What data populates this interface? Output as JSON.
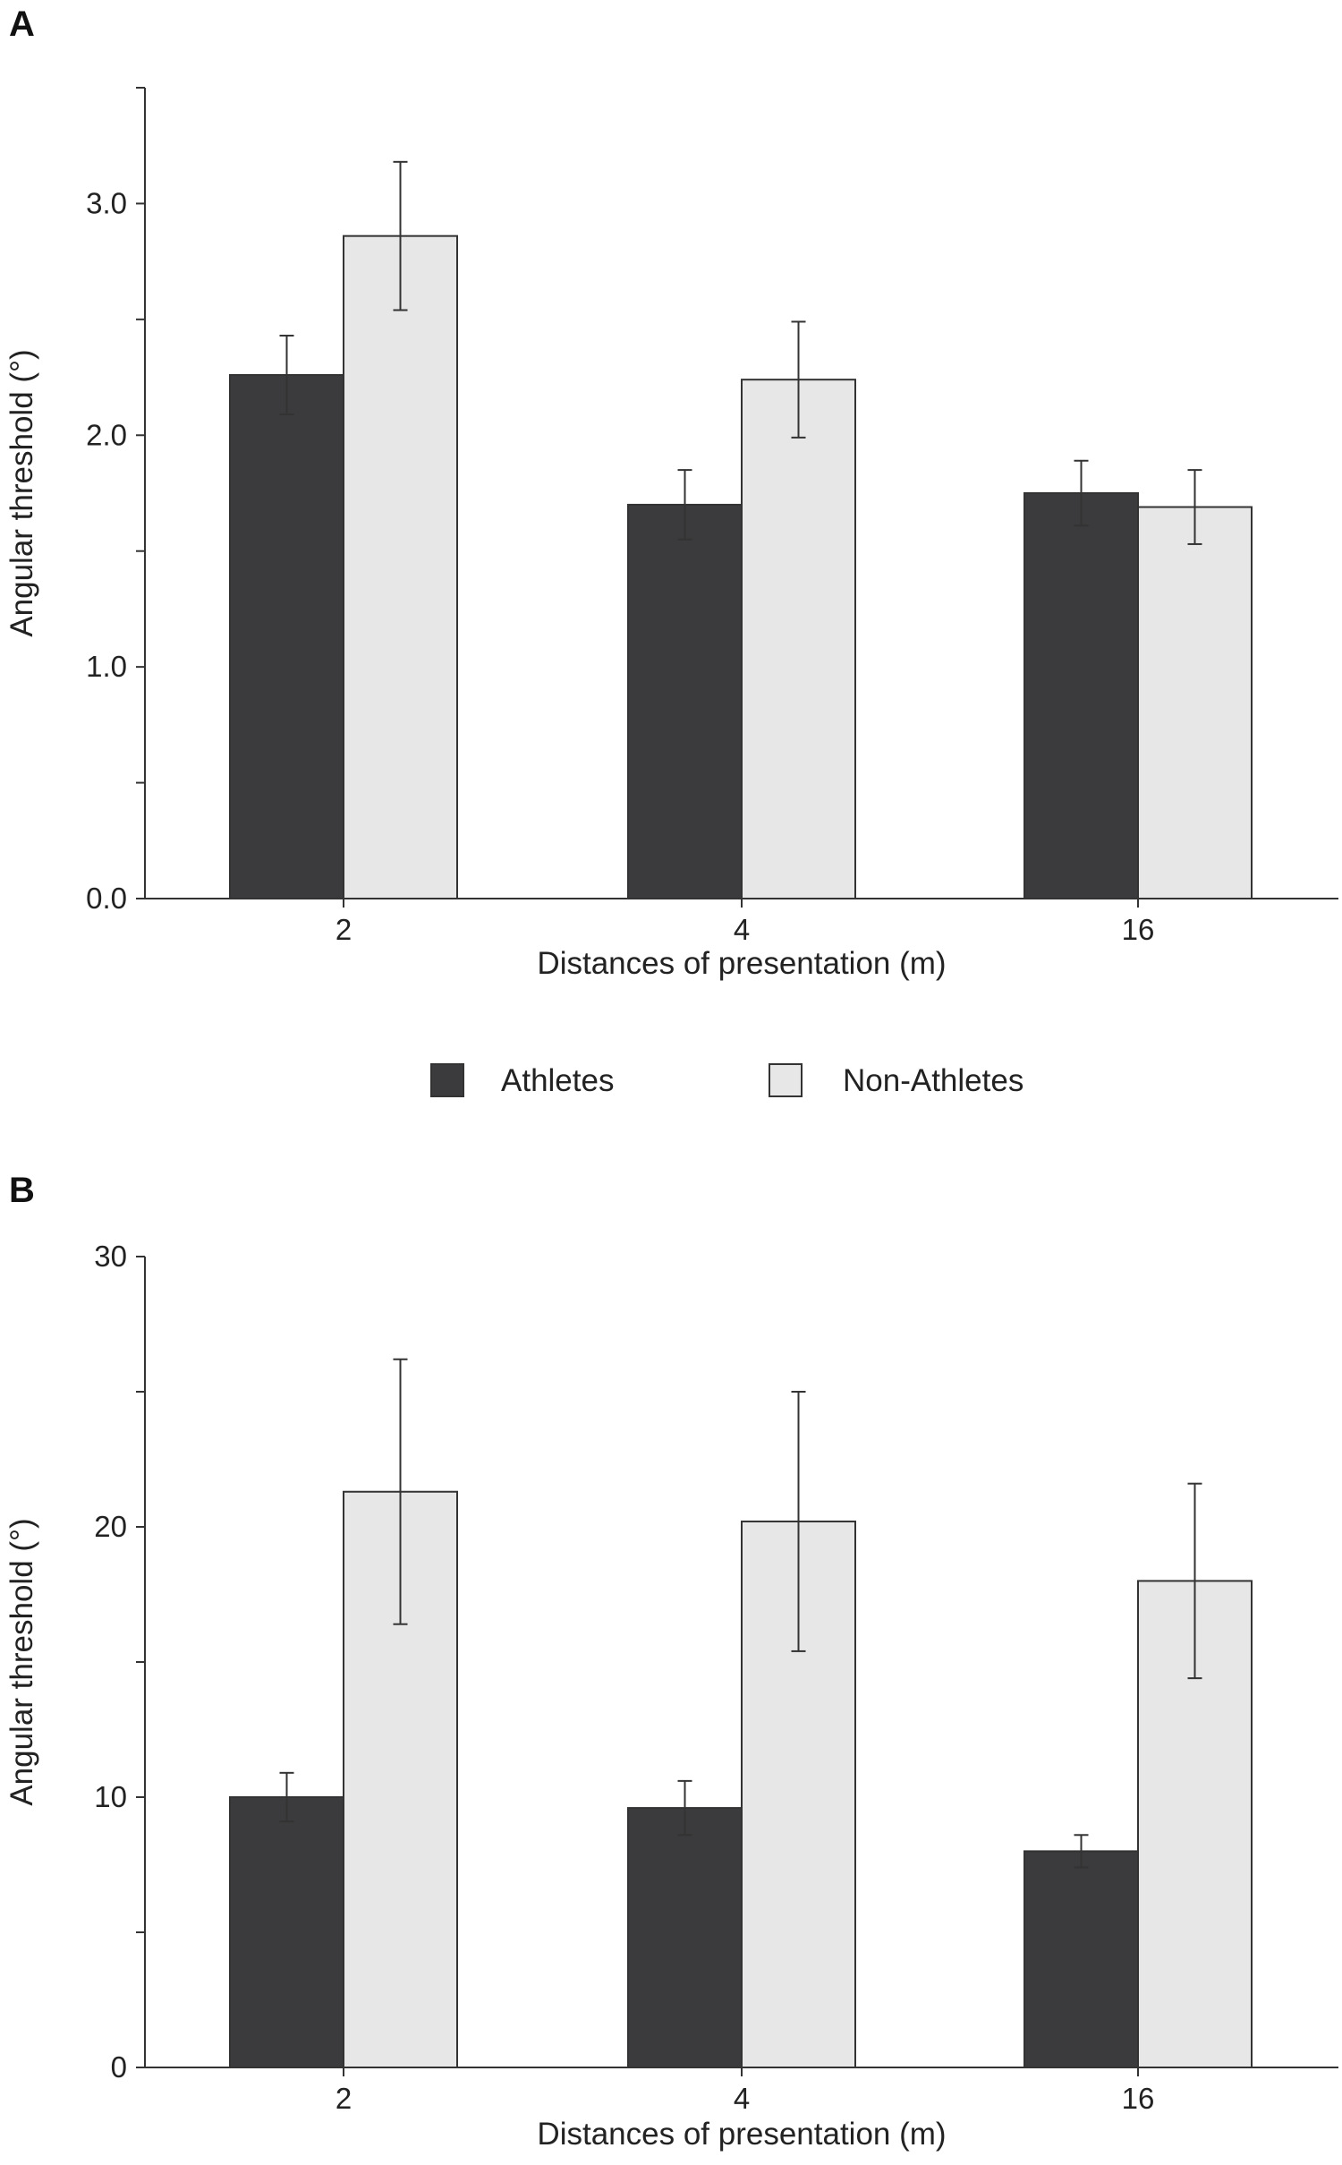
{
  "chart_data": [
    {
      "type": "bar",
      "panel": "A",
      "categories": [
        "2",
        "4",
        "16"
      ],
      "series": [
        {
          "name": "Athletes",
          "color": "#3b3b3d",
          "values": [
            2.26,
            1.7,
            1.75
          ],
          "errors": [
            0.17,
            0.15,
            0.14
          ]
        },
        {
          "name": "Non-Athletes",
          "color": "#e6e7e6",
          "values": [
            2.86,
            2.24,
            1.69
          ],
          "errors": [
            0.32,
            0.25,
            0.16
          ]
        }
      ],
      "xlabel": "Distances of presentation (m)",
      "ylabel": "Angular threshold (°)",
      "ylim": [
        0,
        3.5
      ],
      "yticks": [
        0.0,
        0.5,
        1.0,
        1.5,
        2.0,
        2.5,
        3.0,
        3.5
      ],
      "ytick_labels": {
        "0": "0.0",
        "2": "1.0",
        "4": "2.0",
        "6": "3.0"
      }
    },
    {
      "type": "bar",
      "panel": "B",
      "categories": [
        "2",
        "4",
        "16"
      ],
      "series": [
        {
          "name": "Athletes",
          "color": "#3b3b3d",
          "values": [
            10.0,
            9.6,
            8.0
          ],
          "errors": [
            0.9,
            1.0,
            0.6
          ]
        },
        {
          "name": "Non-Athletes",
          "color": "#e6e7e6",
          "values": [
            21.3,
            20.2,
            18.0
          ],
          "errors": [
            4.9,
            4.8,
            3.6
          ]
        }
      ],
      "xlabel": "Distances of presentation (m)",
      "ylabel": "Angular threshold (°)",
      "ylim": [
        0,
        30
      ],
      "yticks": [
        0,
        5,
        10,
        15,
        20,
        25,
        30
      ],
      "ytick_labels": {
        "0": "0",
        "2": "10",
        "4": "20",
        "6": "30"
      }
    }
  ],
  "legend": {
    "athletes_label": "Athletes",
    "non_athletes_label": "Non-Athletes",
    "athletes_color": "#3b3b3d",
    "non_athletes_color": "#e6e7e6"
  },
  "labels": {
    "panel_a": "A",
    "panel_b": "B"
  }
}
